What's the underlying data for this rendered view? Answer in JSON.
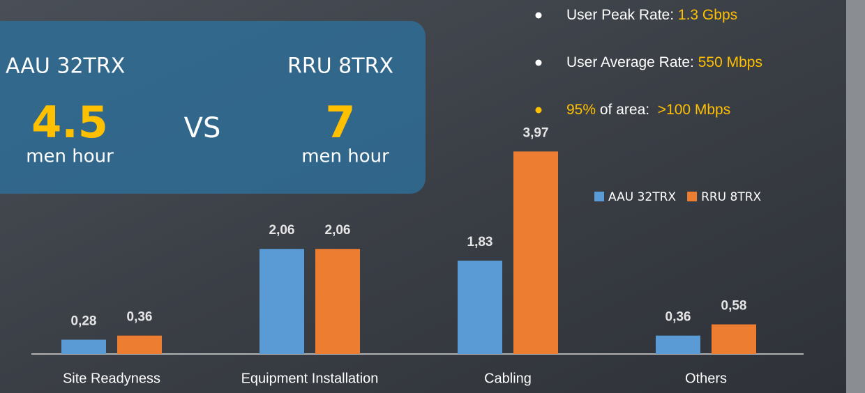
{
  "chart_data": {
    "type": "bar",
    "categories": [
      "Site Readyness",
      "Equipment Installation",
      "Cabling",
      "Others"
    ],
    "series": [
      {
        "name": "AAU 32TRX",
        "color": "#5b9bd5",
        "values": [
          0.28,
          2.06,
          1.83,
          0.36
        ],
        "value_labels": [
          "0,28",
          "2,06",
          "1,83",
          "0,36"
        ]
      },
      {
        "name": "RRU 8TRX",
        "color": "#ed7d31",
        "values": [
          0.36,
          2.06,
          3.97,
          0.58
        ],
        "value_labels": [
          "0,36",
          "2,06",
          "3,97",
          "0,58"
        ]
      }
    ],
    "ylim": [
      0,
      5
    ],
    "grid": false
  },
  "panel": {
    "left_title": "AAU 32TRX",
    "right_title": "RRU 8TRX",
    "left_value": 4.5,
    "right_value": 7,
    "left_unit": "men hour",
    "right_unit": "men hour",
    "versus": "VS"
  },
  "bullets": [
    {
      "color": "#ffffff",
      "segments": [
        {
          "text": "User Peak Rate: ",
          "color": "#ffffff"
        },
        {
          "text": "1.3 Gbps",
          "color": "#ffc000"
        }
      ]
    },
    {
      "color": "#ffffff",
      "segments": [
        {
          "text": "User Average Rate: ",
          "color": "#ffffff"
        },
        {
          "text": "550 Mbps",
          "color": "#ffc000"
        }
      ]
    },
    {
      "color": "#ffc000",
      "segments": [
        {
          "text": "95%",
          "color": "#ffc000"
        },
        {
          "text": " of area:  ",
          "color": "#ffffff"
        },
        {
          "text": ">100 Mbps",
          "color": "#ffc000"
        }
      ]
    }
  ]
}
